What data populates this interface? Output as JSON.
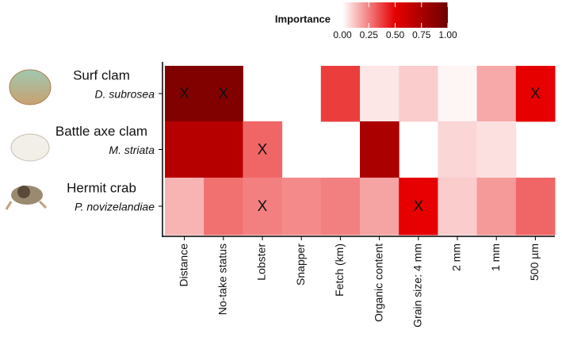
{
  "chart_data": {
    "type": "heatmap",
    "legend_title": "Importance",
    "categories": [
      "Distance",
      "No-take status",
      "Lobster",
      "Snapper",
      "Fetch (km)",
      "Organic content",
      "Grain size: 4 mm",
      "2 mm",
      "1 mm",
      "500 µm"
    ],
    "rows": [
      {
        "name": "Surf clam",
        "species": "D. subrosea"
      },
      {
        "name": "Battle axe clam",
        "species": "M. striata"
      },
      {
        "name": "Hermit crab",
        "species": "P. novizelandiae"
      }
    ],
    "values": [
      [
        0.92,
        0.92,
        null,
        null,
        0.38,
        0.05,
        0.1,
        0.02,
        0.17,
        0.5
      ],
      [
        0.7,
        0.7,
        0.3,
        null,
        null,
        0.75,
        null,
        0.08,
        0.06,
        null
      ],
      [
        0.15,
        0.28,
        0.25,
        0.23,
        0.25,
        0.18,
        0.5,
        0.1,
        0.2,
        0.3
      ]
    ],
    "significance": [
      [
        "X",
        "X",
        null,
        null,
        null,
        null,
        null,
        null,
        null,
        "X"
      ],
      [
        null,
        null,
        "X",
        null,
        null,
        null,
        null,
        null,
        null,
        null
      ],
      [
        null,
        null,
        "X",
        null,
        null,
        null,
        "X",
        null,
        null,
        null
      ]
    ],
    "colorscale": [
      "#ffffff",
      "#e60000",
      "#6e0000"
    ],
    "clim": [
      0,
      1
    ],
    "cticks": [
      {
        "value": 0,
        "label": "0.00"
      },
      {
        "value": 0.25,
        "label": "0.25"
      },
      {
        "value": 0.5,
        "label": "0.50"
      },
      {
        "value": 0.75,
        "label": "0.75"
      },
      {
        "value": 1,
        "label": "1.00"
      }
    ]
  }
}
